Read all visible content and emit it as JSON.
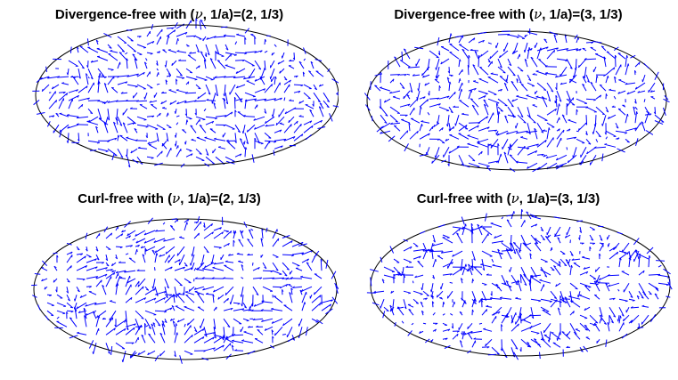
{
  "chart_data": [
    {
      "type": "quiver",
      "projection": "mollweide",
      "field": "divergence-free",
      "title_prefix": "Divergence-free with (",
      "title_symbol": "ν",
      "title_suffix": ", 1/a)=(2, 1/3)",
      "nu": 2,
      "inv_a": "1/3",
      "arrow_color": "#0000ff",
      "grid": false,
      "seed": 11
    },
    {
      "type": "quiver",
      "projection": "mollweide",
      "field": "divergence-free",
      "title_prefix": "Divergence-free with (",
      "title_symbol": "ν",
      "title_suffix": ", 1/a)=(3, 1/3)",
      "nu": 3,
      "inv_a": "1/3",
      "arrow_color": "#0000ff",
      "grid": false,
      "seed": 23
    },
    {
      "type": "quiver",
      "projection": "mollweide",
      "field": "curl-free",
      "title_prefix": "Curl-free with (",
      "title_symbol": "ν",
      "title_suffix": ", 1/a)=(2, 1/3)",
      "nu": 2,
      "inv_a": "1/3",
      "arrow_color": "#0000ff",
      "grid": false,
      "seed": 37
    },
    {
      "type": "quiver",
      "projection": "mollweide",
      "field": "curl-free",
      "title_prefix": "Curl-free with (",
      "title_symbol": "ν",
      "title_suffix": ", 1/a)=(3, 1/3)",
      "nu": 3,
      "inv_a": "1/3",
      "arrow_color": "#0000ff",
      "grid": false,
      "seed": 53
    }
  ]
}
